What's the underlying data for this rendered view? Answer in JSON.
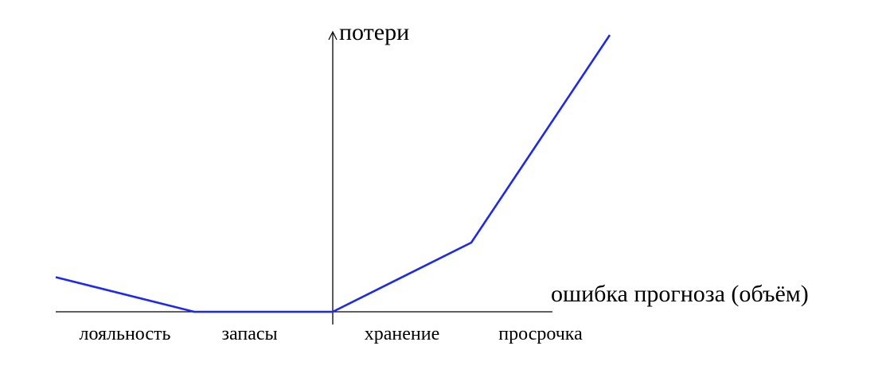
{
  "chart_data": {
    "type": "line",
    "title": "",
    "xlabel": "ошибка прогноза (объём)",
    "ylabel": "потери",
    "xlim": [
      -2.0,
      2.0
    ],
    "ylim": [
      0,
      4.0
    ],
    "grid": false,
    "legend": "none",
    "series": [
      {
        "color": "#1f2ae8",
        "points": [
          {
            "x": -2.0,
            "y": 0.5
          },
          {
            "x": -1.0,
            "y": 0.0
          },
          {
            "x": 0.0,
            "y": 0.0
          },
          {
            "x": 1.0,
            "y": 1.0
          },
          {
            "x": 2.0,
            "y": 4.0
          }
        ]
      }
    ],
    "region_labels": [
      {
        "x": -1.5,
        "text": "лояльность"
      },
      {
        "x": -0.6,
        "text": "запасы"
      },
      {
        "x": 0.5,
        "text": "хранение"
      },
      {
        "x": 1.5,
        "text": "просрочка"
      }
    ]
  }
}
